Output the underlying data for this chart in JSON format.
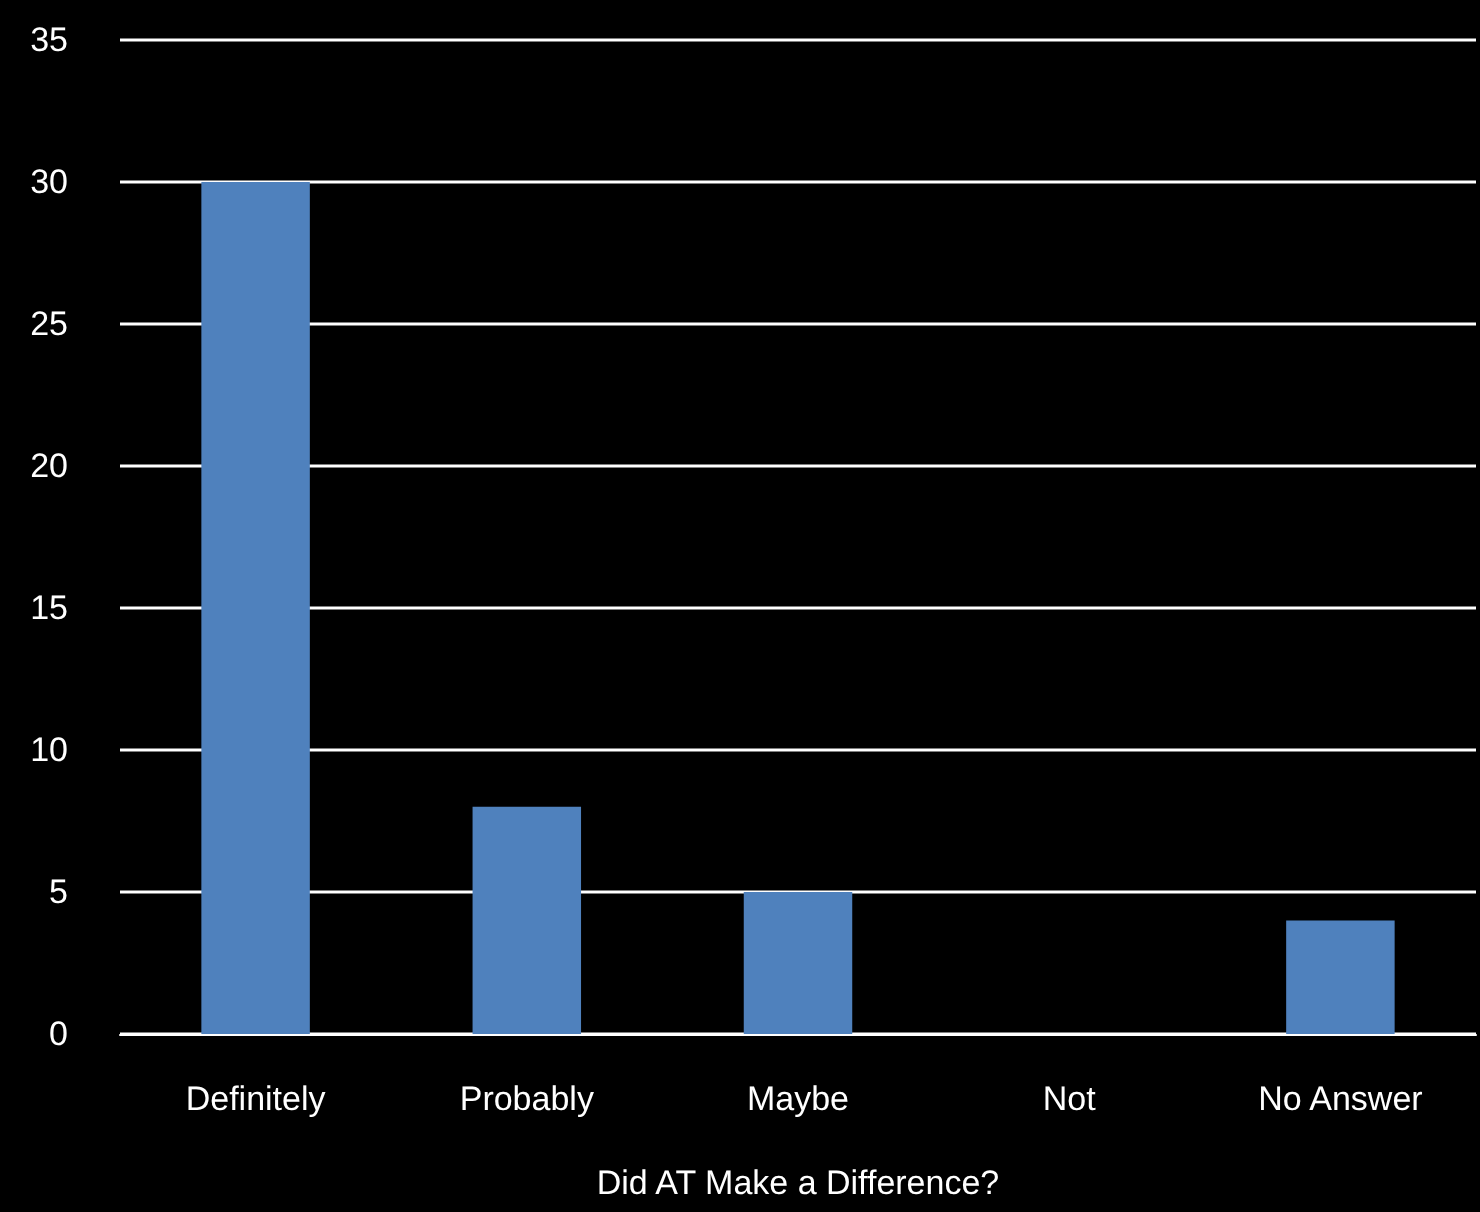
{
  "chart_data": {
    "type": "bar",
    "xlabel": "Did AT Make a Difference?",
    "categories": [
      "Definitely",
      "Probably",
      "Maybe",
      "Not",
      "No Answer"
    ],
    "values": [
      30,
      8,
      5,
      0,
      4
    ],
    "color": "#4f81bd",
    "ylim": [
      0,
      35
    ],
    "yticks": [
      0,
      5,
      10,
      15,
      20,
      25,
      30,
      35
    ],
    "grid": "y"
  }
}
